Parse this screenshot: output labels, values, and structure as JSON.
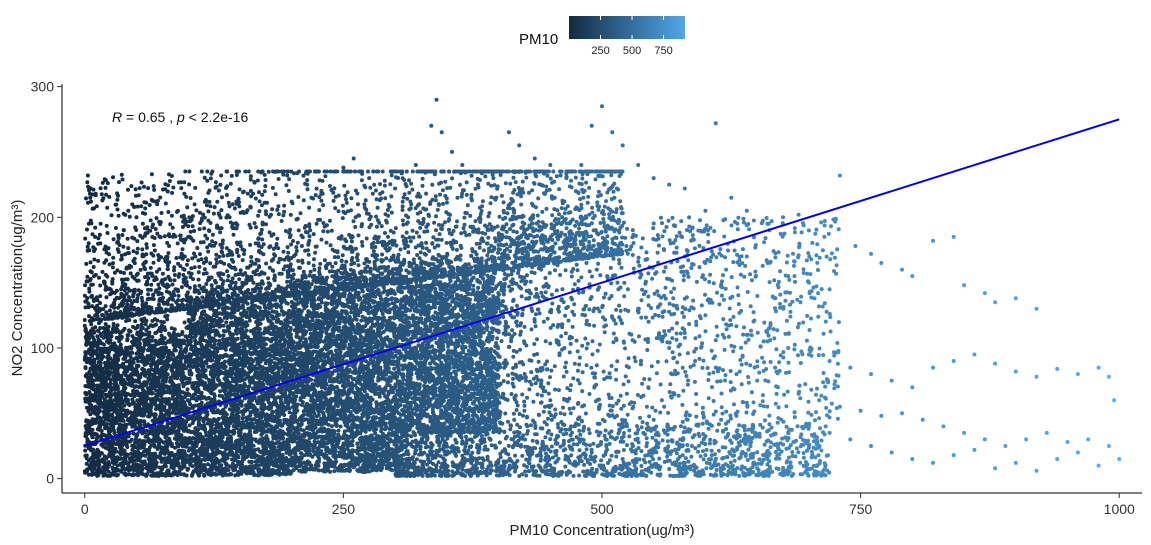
{
  "chart_data": {
    "type": "scatter",
    "xlabel": "PM10 Concentration(ug/m³)",
    "ylabel": "NO2 Concentration(ug/m³)",
    "xlim": [
      -22,
      1022
    ],
    "ylim": [
      -11,
      302
    ],
    "x_ticks": [
      0,
      250,
      500,
      750,
      1000
    ],
    "x_tick_labels": [
      "0",
      "250",
      "500",
      "750",
      "1000"
    ],
    "y_ticks": [
      0,
      100,
      200,
      300
    ],
    "y_tick_labels": [
      "0",
      "100",
      "200",
      "300"
    ],
    "grid": false,
    "color_scale": {
      "variable": "PM10",
      "title": "PM10",
      "low_color": "#132B43",
      "high_color": "#56B1F7",
      "range": [
        0,
        1000
      ],
      "legend_range": [
        0,
        920
      ],
      "ticks": [
        250,
        500,
        750
      ],
      "tick_labels": [
        "250",
        "500",
        "750"
      ],
      "legend_position": "top"
    },
    "annotation": {
      "r_label": "R",
      "r_value": " = 0.65 , ",
      "p_label": "p",
      "p_value": " < 2.2e-16"
    },
    "regression_line": {
      "color": "#0000FF",
      "x": [
        0,
        1000
      ],
      "y": [
        25,
        275
      ]
    },
    "density_regions": [
      {
        "x_min": 0,
        "x_max": 100,
        "y_min": 2,
        "y_max": 125
      },
      {
        "x_min": 100,
        "x_max": 200,
        "y_min": 2,
        "y_max": 145
      },
      {
        "x_min": 200,
        "x_max": 300,
        "y_min": 5,
        "y_max": 160
      },
      {
        "x_min": 300,
        "x_max": 400,
        "y_min": 35,
        "y_max": 170
      }
    ],
    "sample_points": [
      [
        3,
        232
      ],
      [
        5,
        218
      ],
      [
        6,
        212
      ],
      [
        4,
        195
      ],
      [
        10,
        185
      ],
      [
        22,
        188
      ],
      [
        15,
        180
      ],
      [
        50,
        200
      ],
      [
        70,
        210
      ],
      [
        85,
        192
      ],
      [
        100,
        185
      ],
      [
        120,
        190
      ],
      [
        140,
        200
      ],
      [
        160,
        208
      ],
      [
        180,
        202
      ],
      [
        200,
        212
      ],
      [
        215,
        225
      ],
      [
        230,
        218
      ],
      [
        250,
        238
      ],
      [
        260,
        245
      ],
      [
        275,
        230
      ],
      [
        290,
        228
      ],
      [
        300,
        222
      ],
      [
        320,
        240
      ],
      [
        335,
        270
      ],
      [
        340,
        290
      ],
      [
        345,
        265
      ],
      [
        355,
        250
      ],
      [
        365,
        240
      ],
      [
        380,
        225
      ],
      [
        395,
        230
      ],
      [
        410,
        265
      ],
      [
        420,
        255
      ],
      [
        435,
        245
      ],
      [
        450,
        240
      ],
      [
        460,
        232
      ],
      [
        470,
        228
      ],
      [
        480,
        240
      ],
      [
        490,
        270
      ],
      [
        500,
        285
      ],
      [
        510,
        265
      ],
      [
        520,
        255
      ],
      [
        535,
        240
      ],
      [
        550,
        230
      ],
      [
        565,
        225
      ],
      [
        580,
        222
      ],
      [
        600,
        205
      ],
      [
        610,
        272
      ],
      [
        625,
        215
      ],
      [
        640,
        205
      ],
      [
        660,
        195
      ],
      [
        675,
        200
      ],
      [
        690,
        202
      ],
      [
        700,
        190
      ],
      [
        715,
        185
      ],
      [
        730,
        232
      ],
      [
        745,
        178
      ],
      [
        760,
        172
      ],
      [
        770,
        165
      ],
      [
        790,
        160
      ],
      [
        800,
        155
      ],
      [
        820,
        182
      ],
      [
        840,
        185
      ],
      [
        850,
        148
      ],
      [
        870,
        142
      ],
      [
        880,
        135
      ],
      [
        900,
        138
      ],
      [
        920,
        130
      ],
      [
        560,
        175
      ],
      [
        580,
        170
      ],
      [
        600,
        165
      ],
      [
        620,
        160
      ],
      [
        640,
        170
      ],
      [
        660,
        165
      ],
      [
        680,
        155
      ],
      [
        700,
        150
      ],
      [
        720,
        145
      ],
      [
        560,
        140
      ],
      [
        580,
        130
      ],
      [
        600,
        125
      ],
      [
        620,
        118
      ],
      [
        640,
        110
      ],
      [
        660,
        105
      ],
      [
        680,
        100
      ],
      [
        700,
        95
      ],
      [
        720,
        90
      ],
      [
        740,
        85
      ],
      [
        760,
        80
      ],
      [
        780,
        75
      ],
      [
        800,
        70
      ],
      [
        820,
        85
      ],
      [
        840,
        90
      ],
      [
        860,
        95
      ],
      [
        880,
        88
      ],
      [
        900,
        82
      ],
      [
        920,
        78
      ],
      [
        940,
        84
      ],
      [
        960,
        80
      ],
      [
        980,
        85
      ],
      [
        990,
        78
      ],
      [
        995,
        60
      ],
      [
        700,
        40
      ],
      [
        720,
        35
      ],
      [
        740,
        30
      ],
      [
        760,
        25
      ],
      [
        780,
        20
      ],
      [
        800,
        15
      ],
      [
        820,
        12
      ],
      [
        840,
        18
      ],
      [
        860,
        22
      ],
      [
        880,
        8
      ],
      [
        900,
        12
      ],
      [
        920,
        6
      ],
      [
        940,
        15
      ],
      [
        960,
        20
      ],
      [
        980,
        10
      ],
      [
        1000,
        15
      ],
      [
        990,
        25
      ],
      [
        970,
        30
      ],
      [
        950,
        28
      ],
      [
        930,
        35
      ],
      [
        910,
        30
      ],
      [
        890,
        25
      ],
      [
        870,
        30
      ],
      [
        850,
        35
      ],
      [
        830,
        40
      ],
      [
        810,
        45
      ],
      [
        790,
        50
      ],
      [
        770,
        48
      ],
      [
        750,
        52
      ],
      [
        730,
        55
      ],
      [
        710,
        60
      ],
      [
        690,
        65
      ],
      [
        670,
        70
      ],
      [
        650,
        75
      ],
      [
        630,
        80
      ],
      [
        610,
        85
      ],
      [
        590,
        90
      ],
      [
        575,
        95
      ],
      [
        565,
        100
      ],
      [
        555,
        110
      ],
      [
        545,
        120
      ],
      [
        535,
        130
      ],
      [
        525,
        145
      ],
      [
        515,
        150
      ],
      [
        505,
        155
      ],
      [
        495,
        160
      ],
      [
        485,
        165
      ],
      [
        475,
        170
      ],
      [
        465,
        175
      ],
      [
        455,
        180
      ],
      [
        445,
        185
      ],
      [
        435,
        190
      ],
      [
        425,
        195
      ],
      [
        415,
        200
      ],
      [
        405,
        205
      ],
      [
        450,
        60
      ],
      [
        460,
        50
      ],
      [
        470,
        40
      ],
      [
        480,
        30
      ],
      [
        490,
        20
      ],
      [
        500,
        10
      ],
      [
        510,
        5
      ],
      [
        520,
        15
      ],
      [
        530,
        25
      ],
      [
        540,
        35
      ],
      [
        550,
        45
      ],
      [
        560,
        55
      ],
      [
        570,
        65
      ],
      [
        580,
        12
      ],
      [
        590,
        8
      ],
      [
        600,
        18
      ],
      [
        610,
        28
      ],
      [
        620,
        38
      ],
      [
        630,
        48
      ],
      [
        640,
        58
      ],
      [
        650,
        8
      ],
      [
        660,
        15
      ],
      [
        670,
        25
      ],
      [
        680,
        35
      ]
    ]
  }
}
